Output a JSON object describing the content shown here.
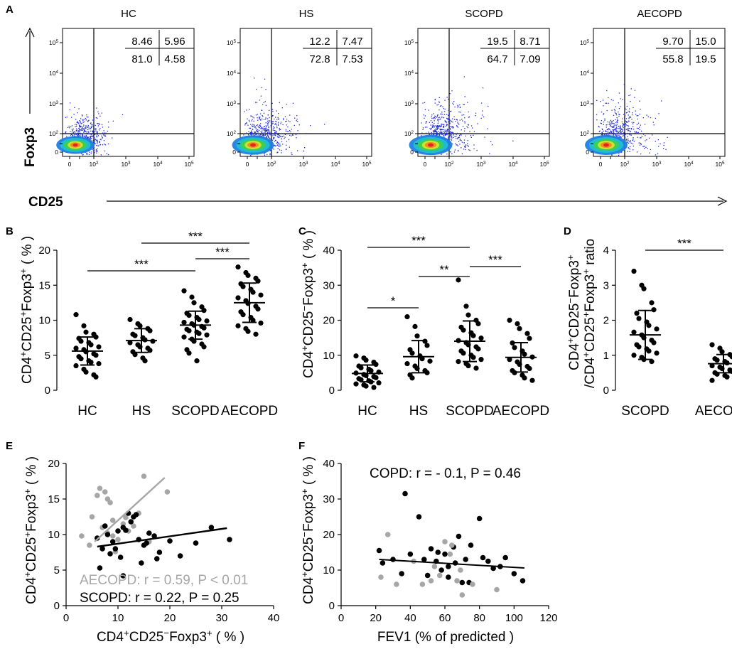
{
  "colors": {
    "black": "#000000",
    "gray": "#a6a6a6",
    "blue": "#1f2bd8"
  },
  "panel_a": {
    "letter": "A",
    "y_label": "Foxp3",
    "x_label": "CD25",
    "tick_labels": [
      "0",
      "10",
      "10",
      "10",
      "10",
      "10"
    ],
    "tick_exponents": [
      "",
      "",
      "2",
      "3",
      "4",
      "5"
    ],
    "plots": [
      {
        "title": "HC",
        "ul": "8.46",
        "ur": "5.96",
        "ll": "81.0",
        "lr": "4.58"
      },
      {
        "title": "HS",
        "ul": "12.2",
        "ur": "7.47",
        "ll": "72.8",
        "lr": "7.53"
      },
      {
        "title": "SCOPD",
        "ul": "19.5",
        "ur": "8.71",
        "ll": "64.7",
        "lr": "7.09"
      },
      {
        "title": "AECOPD",
        "ul": "9.70",
        "ur": "15.0",
        "ll": "55.8",
        "lr": "19.5"
      }
    ]
  },
  "chart_data": [
    {
      "panel": "B",
      "type": "scatter",
      "ylabel": "CD4+CD25+Foxp3+ ( % )",
      "categories": [
        "HC",
        "HS",
        "SCOPD",
        "AECOPD"
      ],
      "ylim": [
        0,
        20
      ],
      "yticks": [
        0,
        5,
        10,
        15,
        20
      ],
      "means": [
        5.6,
        7.1,
        9.3,
        12.5
      ],
      "sd_low": [
        3.6,
        5.4,
        7.3,
        9.7
      ],
      "sd_high": [
        7.6,
        8.8,
        11.3,
        15.3
      ],
      "points": [
        [
          10.8,
          9.2,
          8.3,
          8.0,
          7.6,
          7.4,
          7.0,
          6.8,
          6.5,
          6.2,
          6.0,
          5.8,
          5.5,
          5.2,
          5.0,
          4.8,
          4.5,
          4.2,
          4.0,
          3.8,
          3.5,
          3.0,
          2.6,
          2.2,
          1.9
        ],
        [
          10.1,
          9.5,
          9.2,
          8.8,
          8.5,
          8.0,
          7.8,
          7.5,
          7.2,
          7.0,
          6.8,
          6.5,
          6.2,
          6.0,
          5.7,
          5.5,
          5.1,
          4.6,
          4.2
        ],
        [
          14.2,
          13.3,
          12.5,
          11.9,
          11.4,
          11.0,
          10.7,
          10.4,
          10.1,
          9.9,
          9.7,
          9.5,
          9.3,
          9.1,
          8.9,
          8.7,
          8.5,
          8.3,
          8.1,
          7.9,
          7.6,
          7.3,
          7.0,
          6.6,
          6.2,
          5.8,
          5.3,
          4.2
        ],
        [
          17.6,
          16.8,
          16.4,
          16.0,
          15.6,
          15.2,
          14.8,
          14.4,
          14.0,
          13.6,
          13.2,
          12.8,
          12.4,
          12.0,
          11.6,
          11.2,
          10.8,
          10.4,
          10.0,
          9.6,
          9.2,
          8.8,
          8.4,
          8.0
        ]
      ],
      "significance": [
        {
          "pair": [
            "HC",
            "SCOPD"
          ],
          "label": "***"
        },
        {
          "pair": [
            "HS",
            "AECOPD"
          ],
          "label": "***"
        },
        {
          "pair": [
            "SCOPD",
            "AECOPD"
          ],
          "label": "***"
        }
      ]
    },
    {
      "panel": "C",
      "type": "scatter",
      "ylabel": "CD4+CD25−Foxp3+ ( % )",
      "categories": [
        "HC",
        "HS",
        "SCOPD",
        "AECOPD"
      ],
      "ylim": [
        0,
        40
      ],
      "yticks": [
        0,
        10,
        20,
        30,
        40
      ],
      "means": [
        4.8,
        9.6,
        14.0,
        9.4
      ],
      "sd_low": [
        2.4,
        5.0,
        8.2,
        5.2
      ],
      "sd_high": [
        7.2,
        14.2,
        19.8,
        13.6
      ],
      "points": [
        [
          9.8,
          9.2,
          8.6,
          8.0,
          7.4,
          6.9,
          6.4,
          6.0,
          5.6,
          5.2,
          4.9,
          4.5,
          4.2,
          3.9,
          3.6,
          3.3,
          3.0,
          2.7,
          2.4,
          2.1,
          1.8,
          1.5,
          1.2,
          0.8
        ],
        [
          21.0,
          18.2,
          15.5,
          14.0,
          12.8,
          11.6,
          10.6,
          9.8,
          9.0,
          8.3,
          7.6,
          6.9,
          6.2,
          5.6,
          5.0,
          4.4,
          3.5
        ],
        [
          31.5,
          24.0,
          21.5,
          20.0,
          19.0,
          18.0,
          17.2,
          16.4,
          15.6,
          14.9,
          14.2,
          13.6,
          13.0,
          12.4,
          11.8,
          11.2,
          10.6,
          10.0,
          9.4,
          8.8,
          8.2,
          7.6,
          7.0,
          6.3
        ],
        [
          20.0,
          19.0,
          17.6,
          16.2,
          14.8,
          13.5,
          12.2,
          11.2,
          10.3,
          9.5,
          8.8,
          8.1,
          7.4,
          6.8,
          6.2,
          5.6,
          5.0,
          4.3,
          3.5,
          2.8
        ]
      ],
      "significance": [
        {
          "pair": [
            "HC",
            "HS"
          ],
          "label": "*"
        },
        {
          "pair": [
            "HC",
            "SCOPD"
          ],
          "label": "***"
        },
        {
          "pair": [
            "HS",
            "SCOPD"
          ],
          "label": "**"
        },
        {
          "pair": [
            "SCOPD",
            "AECOPD"
          ],
          "label": "***"
        }
      ]
    },
    {
      "panel": "D",
      "type": "scatter",
      "ylabel_line1": "CD4+CD25−Foxp3+",
      "ylabel_line2": "/CD4+CD25+Foxp3+ ratio",
      "categories": [
        "SCOPD",
        "AECOPD"
      ],
      "ylim": [
        0,
        4
      ],
      "yticks": [
        0,
        1,
        2,
        3,
        4
      ],
      "means": [
        1.58,
        0.76
      ],
      "sd_low": [
        0.88,
        0.5
      ],
      "sd_high": [
        2.28,
        1.02
      ],
      "points": [
        [
          3.4,
          3.0,
          2.9,
          2.5,
          2.3,
          2.2,
          2.05,
          1.95,
          1.85,
          1.75,
          1.66,
          1.58,
          1.5,
          1.43,
          1.36,
          1.3,
          1.24,
          1.18,
          1.12,
          1.06,
          1.0,
          0.94,
          0.88,
          0.82
        ],
        [
          1.3,
          1.2,
          1.1,
          1.02,
          0.96,
          0.9,
          0.86,
          0.82,
          0.78,
          0.74,
          0.7,
          0.66,
          0.62,
          0.58,
          0.54,
          0.5,
          0.46,
          0.42,
          0.38,
          0.33,
          0.28
        ]
      ],
      "significance": [
        {
          "pair": [
            "SCOPD",
            "AECOPD"
          ],
          "label": "***"
        }
      ]
    },
    {
      "panel": "E",
      "type": "scatter",
      "xlabel": "CD4+CD25−Foxp3+ ( % )",
      "ylabel": "CD4+CD25+Foxp3+ ( % )",
      "xlim": [
        0,
        40
      ],
      "ylim": [
        0,
        20
      ],
      "xticks": [
        0,
        10,
        20,
        30,
        40
      ],
      "yticks": [
        0,
        5,
        10,
        15,
        20
      ],
      "series": [
        {
          "name": "AECOPD",
          "color": "gray",
          "stat": "AECOPD: r = 0.59, P < 0.01",
          "fit": [
            [
              5.5,
              9.0
            ],
            [
              19.0,
              18.0
            ]
          ],
          "x": [
            6.5,
            6.0,
            7.5,
            8.0,
            8.5,
            15.0,
            19.5,
            5.0,
            9.0,
            11.0,
            7.0,
            12.0,
            8.0,
            9.0,
            16.0,
            6.0,
            10.0,
            14.0,
            3.0,
            4.5,
            9.5,
            11.5,
            13.0
          ],
          "y": [
            16.5,
            15.5,
            16.0,
            15.0,
            14.5,
            18.2,
            16.0,
            12.5,
            12.0,
            11.5,
            11.0,
            10.5,
            10.2,
            9.8,
            9.0,
            9.5,
            9.3,
            13.0,
            9.8,
            8.5,
            7.6,
            12.4,
            11.2
          ]
        },
        {
          "name": "SCOPD",
          "color": "black",
          "stat": "SCOPD: r = 0.22, P = 0.25",
          "fit": [
            [
              6.0,
              8.3
            ],
            [
              31.0,
              10.9
            ]
          ],
          "x": [
            6.0,
            7.0,
            8.0,
            9.0,
            10.0,
            11.0,
            12.0,
            13.0,
            14.0,
            15.0,
            16.0,
            17.0,
            18.0,
            7.5,
            8.5,
            9.5,
            10.5,
            11.5,
            12.5,
            13.5,
            15.5,
            17.5,
            20.0,
            22.0,
            25.0,
            28.0,
            31.5,
            6.5,
            11.0,
            14.5
          ],
          "y": [
            9.5,
            8.0,
            10.0,
            9.0,
            10.5,
            11.0,
            13.0,
            12.5,
            9.3,
            8.5,
            10.2,
            9.8,
            7.5,
            11.2,
            7.3,
            8.0,
            6.8,
            10.6,
            11.8,
            12.8,
            8.8,
            6.6,
            9.1,
            7.0,
            8.8,
            11.0,
            9.3,
            5.3,
            4.2,
            6.0
          ]
        }
      ]
    },
    {
      "panel": "F",
      "type": "scatter",
      "xlabel": "FEV1 (% of  predicted )",
      "ylabel": "CD4+CD25−Foxp3+ ( % )",
      "xlim": [
        0,
        120
      ],
      "ylim": [
        0,
        40
      ],
      "xticks": [
        0,
        20,
        40,
        60,
        80,
        100,
        120
      ],
      "yticks": [
        0,
        10,
        20,
        30,
        40
      ],
      "stat": "COPD: r = - 0.1, P = 0.46",
      "fit": [
        [
          22,
          13.0
        ],
        [
          106,
          10.6
        ]
      ],
      "series": [
        {
          "name": "COPD-black",
          "color": "black",
          "x": [
            22,
            24,
            30,
            35,
            37,
            40,
            45,
            48,
            52,
            55,
            58,
            60,
            62,
            65,
            68,
            70,
            72,
            75,
            80,
            85,
            88,
            92,
            95,
            100,
            105,
            50,
            56,
            62,
            66,
            74,
            82
          ],
          "y": [
            15.5,
            12.0,
            13.0,
            9.0,
            31.5,
            14.5,
            25.0,
            13.0,
            16.0,
            12.5,
            10.0,
            14.5,
            11.0,
            16.5,
            19.5,
            6.5,
            13.0,
            17.0,
            24.5,
            12.5,
            10.5,
            11.0,
            13.5,
            9.0,
            7.0,
            8.5,
            15.0,
            8.0,
            12.0,
            6.5,
            13.5
          ]
        },
        {
          "name": "COPD-gray",
          "color": "gray",
          "x": [
            23,
            32,
            42,
            47,
            52,
            57,
            60,
            64,
            67,
            70,
            76,
            90,
            27,
            54,
            63,
            69
          ],
          "y": [
            8.0,
            6.0,
            12.5,
            6.0,
            7.0,
            8.5,
            18.0,
            17.0,
            7.0,
            3.0,
            6.0,
            4.5,
            20.0,
            11.0,
            14.5,
            10.0
          ]
        }
      ]
    }
  ]
}
